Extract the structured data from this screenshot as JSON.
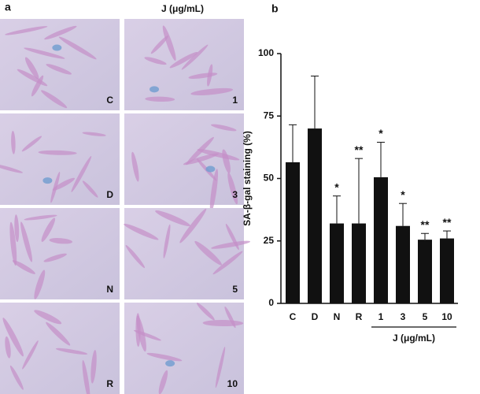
{
  "panel_a": {
    "label": "a",
    "header": "J (μg/mL)",
    "images": [
      "C",
      "1",
      "D",
      "3",
      "N",
      "5",
      "R",
      "10"
    ]
  },
  "panel_b": {
    "label": "b"
  },
  "chart_data": {
    "type": "bar",
    "y_label": "SA-β-gal staining (%)",
    "categories": [
      "C",
      "D",
      "N",
      "R",
      "1",
      "3",
      "5",
      "10"
    ],
    "values": [
      56.5,
      70,
      32,
      32,
      50.5,
      31,
      25.5,
      26
    ],
    "errors": [
      15,
      21,
      11,
      26,
      14,
      9,
      2.5,
      3
    ],
    "annotations": [
      null,
      null,
      "*",
      "**",
      "*",
      "*",
      "**",
      "**"
    ],
    "group_label": "J (μg/mL)",
    "color": "#111111",
    "ylim": [
      0,
      100
    ],
    "yticks": [
      0,
      25,
      50,
      75,
      100
    ]
  }
}
